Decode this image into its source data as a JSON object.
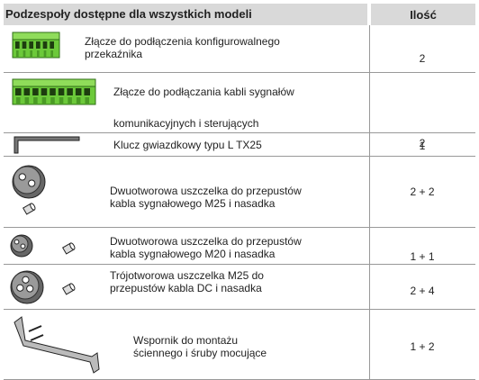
{
  "table": {
    "header": [
      "Podzespoły dostępne dla wszystkich modeli",
      "Ilość"
    ],
    "rows": [
      {
        "description": [
          "Złącze do podłączenia konfigurowalnego",
          "przekaźnika"
        ],
        "quantity": "2"
      },
      {
        "description": [
          "Złącze do podłączania kabli sygnałów",
          "komunikacyjnych i sterujących"
        ],
        "quantity": "2"
      },
      {
        "description": [
          "Klucz gwiazdkowy typu L TX25"
        ],
        "quantity": "1"
      },
      {
        "description": [
          "Dwuotworowa uszczelka do przepustów",
          "kabla sygnałowego M25 i nasadka"
        ],
        "quantity": "2 + 2"
      },
      {
        "description": [
          "Dwuotworowa uszczelka do przepustów",
          "kabla sygnałowego M20 i nasadka"
        ],
        "quantity": "1 + 1"
      },
      {
        "description": [
          "Trójotworowa uszczelka M25 do",
          "przepustów kabla DC i nasadka"
        ],
        "quantity": "2 + 4"
      },
      {
        "description": [
          "Wspornik do montażu",
          "ściennego i śruby mocujące"
        ],
        "quantity": "1 + 2"
      }
    ]
  }
}
